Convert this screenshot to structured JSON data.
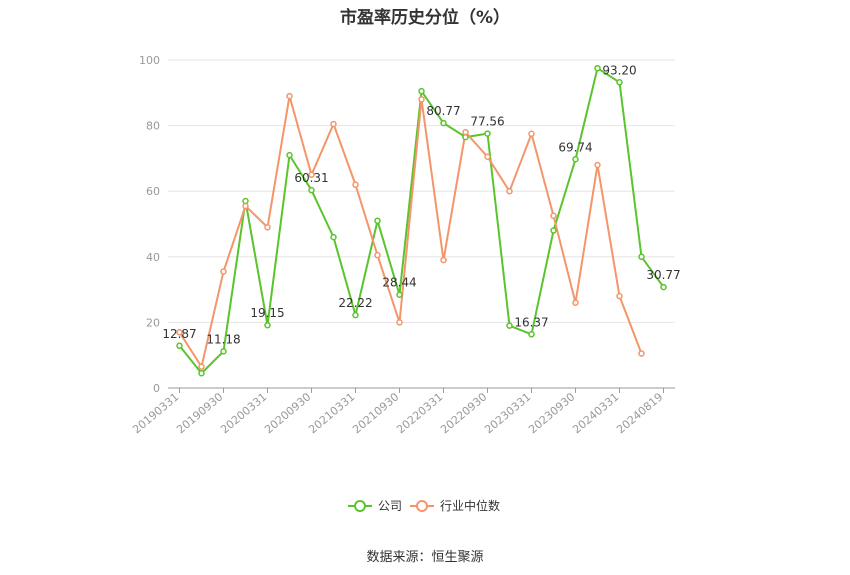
{
  "chart_data": {
    "type": "line",
    "title": "市盈率历史分位（%）",
    "source": "数据来源：恒生聚源",
    "ylim": [
      0,
      100
    ],
    "yticks": [
      0,
      20,
      40,
      60,
      80,
      100
    ],
    "x_tick_labels": [
      "20190331",
      "20190930",
      "20200331",
      "20200930",
      "20210331",
      "20210930",
      "20220331",
      "20220930",
      "20230331",
      "20230930",
      "20240331",
      "20240819"
    ],
    "x": [
      "20190331",
      "20190630",
      "20190930",
      "20191231",
      "20200331",
      "20200630",
      "20200930",
      "20201231",
      "20210331",
      "20210630",
      "20210930",
      "20211231",
      "20220331",
      "20220630",
      "20220930",
      "20221231",
      "20230331",
      "20230630",
      "20230930",
      "20231231",
      "20240331",
      "20240630",
      "20240819"
    ],
    "grid": true,
    "legend_position": "bottom",
    "series": [
      {
        "name": "公司",
        "color": "#5ac42c",
        "values": [
          12.87,
          4.5,
          11.18,
          57.0,
          19.15,
          71.0,
          60.31,
          46.0,
          22.22,
          51.0,
          28.44,
          90.5,
          80.77,
          76.5,
          77.56,
          19.0,
          16.37,
          48.0,
          69.74,
          97.5,
          93.2,
          40.0,
          30.77
        ],
        "labels": [
          "12.87",
          "",
          "11.18",
          "",
          "19.15",
          "",
          "60.31",
          "",
          "22.22",
          "",
          "28.44",
          "",
          "80.77",
          "",
          "77.56",
          "",
          "16.37",
          "",
          "69.74",
          "",
          "93.20",
          "",
          "30.77"
        ]
      },
      {
        "name": "行业中位数",
        "color": "#f4956a",
        "values": [
          17.0,
          6.5,
          35.5,
          55.5,
          49.0,
          89.0,
          65.0,
          80.5,
          62.0,
          40.5,
          20.0,
          88.0,
          39.0,
          78.0,
          70.5,
          60.0,
          77.5,
          52.5,
          26.0,
          68.0,
          28.0,
          10.5,
          null
        ]
      }
    ]
  }
}
